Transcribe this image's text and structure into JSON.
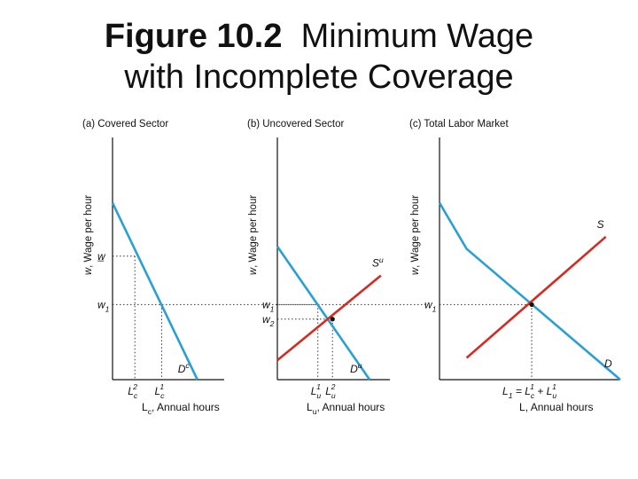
{
  "title": {
    "figure_number": "Figure 10.2",
    "line1_rest": "Minimum Wage",
    "line2": "with Incomplete Coverage"
  },
  "colors": {
    "demand": "#2a9fd6",
    "supply": "#d62a20",
    "axis": "#111111",
    "guide": "#333333"
  },
  "chart_data": [
    {
      "type": "line",
      "panel_title": "(a) Covered Sector",
      "ylabel": "w, Wage per hour",
      "xlabel": "L_c, Annual hours",
      "xlim": [
        0,
        100
      ],
      "ylim": [
        0,
        100
      ],
      "series": [
        {
          "name": "D^c",
          "role": "demand",
          "points": [
            [
              0,
              73
            ],
            [
              76,
              0
            ]
          ]
        }
      ],
      "levels": [
        {
          "label": "w̲",
          "y": 51,
          "x_end": 20,
          "tick_label": "L_c^2"
        },
        {
          "label": "w_1",
          "y": 31,
          "x_end": 44,
          "tick_label": "L_c^1"
        }
      ]
    },
    {
      "type": "line",
      "panel_title": "(b) Uncovered Sector",
      "ylabel": "w, Wage per hour",
      "xlabel": "L_u, Annual hours",
      "xlim": [
        0,
        100
      ],
      "ylim": [
        0,
        100
      ],
      "series": [
        {
          "name": "D^u",
          "role": "demand",
          "points": [
            [
              0,
              55
            ],
            [
              82,
              0
            ]
          ]
        },
        {
          "name": "S^u",
          "role": "supply",
          "points": [
            [
              0,
              8
            ],
            [
              92,
              43
            ]
          ]
        }
      ],
      "levels": [
        {
          "label": "w_1",
          "y": 31,
          "x_end": 36,
          "tick_label": "L_u^1"
        },
        {
          "label": "w_2",
          "y": 25,
          "x_end": 49,
          "tick_label": "L_u^2"
        }
      ]
    },
    {
      "type": "line",
      "panel_title": "(c) Total Labor Market",
      "ylabel": "w, Wage per hour",
      "xlabel": "L, Annual hours",
      "xlim": [
        0,
        100
      ],
      "ylim": [
        0,
        100
      ],
      "series": [
        {
          "name": "D",
          "role": "demand",
          "points": [
            [
              0,
              73
            ],
            [
              15,
              54
            ],
            [
              100,
              0
            ]
          ]
        },
        {
          "name": "S",
          "role": "supply",
          "points": [
            [
              15,
              9
            ],
            [
              92,
              59
            ]
          ]
        }
      ],
      "levels": [
        {
          "label": "w_1",
          "y": 31,
          "x_end": 51,
          "tick_label": "L_1 = L_c^1 + L_u^1"
        }
      ]
    }
  ]
}
